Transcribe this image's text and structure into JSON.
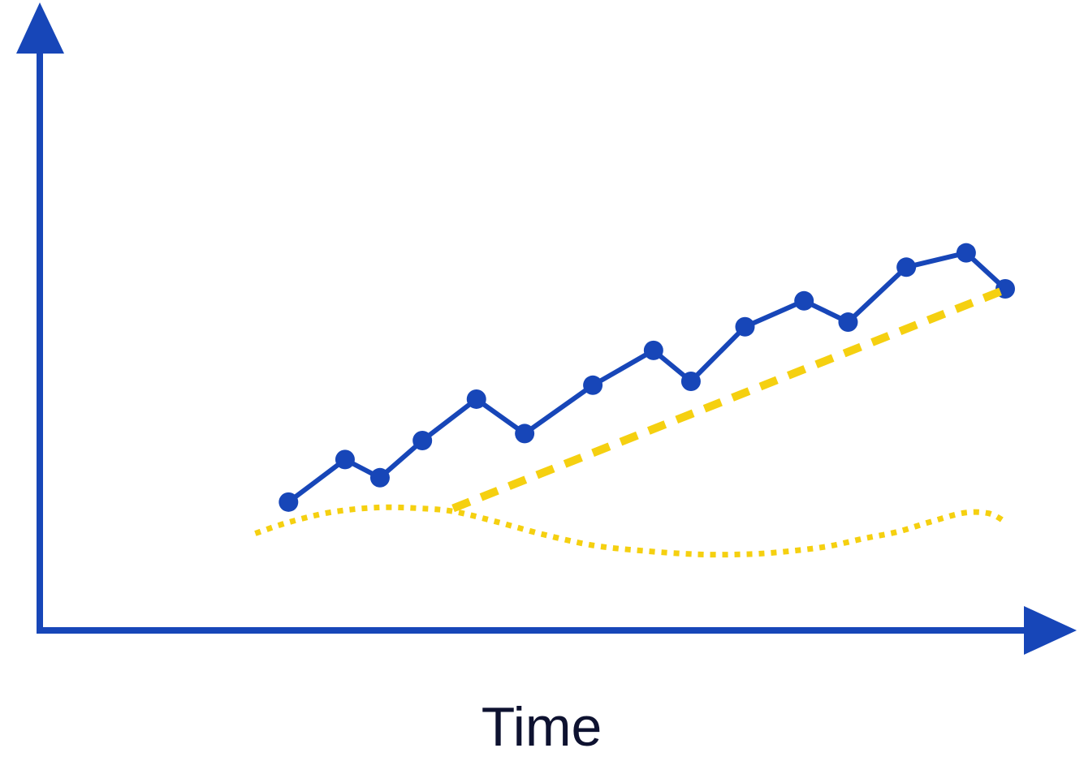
{
  "chart_data": {
    "type": "line",
    "title": "",
    "xlabel": "Time",
    "ylabel": "",
    "xlim": [
      0,
      100
    ],
    "ylim": [
      0,
      100
    ],
    "grid": false,
    "legend": "none",
    "colors": {
      "axis": "#1746b8",
      "series": "#1746b8",
      "trend": "#f5d010",
      "baseline": "#f5d010",
      "label": "#0e1230"
    },
    "series": [
      {
        "style": "solid-markers",
        "x": [
          13.8,
          20.6,
          24.8,
          29.9,
          36.4,
          42.2,
          50.4,
          57.7,
          62.2,
          68.7,
          75.8,
          81.1,
          88.1,
          95.3,
          100.0
        ],
        "y": [
          18.9,
          29.9,
          25.2,
          34.8,
          45.5,
          36.6,
          49.1,
          58.1,
          50.1,
          64.2,
          70.9,
          65.4,
          79.6,
          83.3,
          74.0
        ]
      },
      {
        "style": "dashed",
        "x": [
          33.6,
          100.0
        ],
        "y": [
          17.3,
          73.8
        ]
      },
      {
        "style": "dotted",
        "x": [
          9.8,
          14.0,
          19.0,
          24.5,
          29.5,
          33.6,
          38.5,
          44.5,
          50.5,
          56.5,
          63.0,
          68.5,
          73.0,
          78.5,
          83.0,
          87.0,
          91.0,
          95.0,
          98.0,
          100.0
        ],
        "y": [
          10.8,
          13.8,
          16.3,
          17.5,
          17.3,
          16.5,
          14.0,
          10.5,
          7.7,
          6.3,
          5.4,
          5.4,
          6.0,
          7.4,
          9.5,
          11.2,
          13.8,
          16.1,
          16.0,
          13.8
        ]
      }
    ]
  }
}
